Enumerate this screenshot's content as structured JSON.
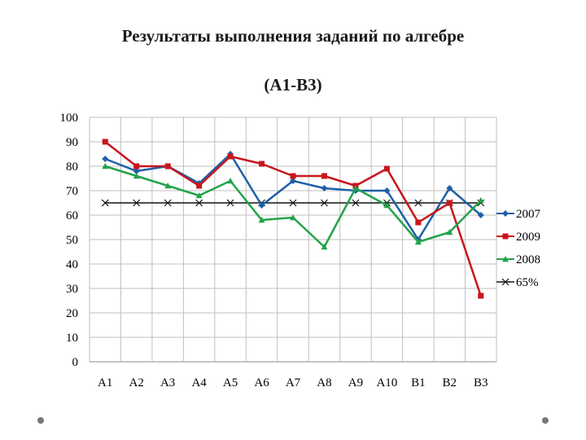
{
  "title_line1": "Результаты выполнения заданий по алгебре",
  "title_line2": "(А1-В3)",
  "chart_data": {
    "type": "line",
    "categories": [
      "А1",
      "А2",
      "А3",
      "А4",
      "А5",
      "А6",
      "А7",
      "А8",
      "А9",
      "А10",
      "В1",
      "В2",
      "В3"
    ],
    "ylim": [
      0,
      100
    ],
    "yticks": [
      0,
      10,
      20,
      30,
      40,
      50,
      60,
      70,
      80,
      90,
      100
    ],
    "grid": true,
    "legend": "right",
    "series": [
      {
        "name": "2007",
        "color": "#1f5fa8",
        "marker": "diamond",
        "values": [
          83,
          78,
          80,
          73,
          85,
          64,
          74,
          71,
          70,
          70,
          50,
          71,
          60
        ]
      },
      {
        "name": "2009",
        "color": "#c8151b",
        "marker": "square",
        "values": [
          90,
          80,
          80,
          72,
          84,
          81,
          76,
          76,
          72,
          79,
          57,
          65,
          27
        ]
      },
      {
        "name": "2008",
        "color": "#23a34a",
        "marker": "triangle",
        "values": [
          80,
          76,
          72,
          68,
          74,
          58,
          59,
          47,
          71,
          64,
          49,
          53,
          66
        ]
      },
      {
        "name": "65%",
        "color": "#111111",
        "marker": "x",
        "values": [
          65,
          65,
          65,
          65,
          65,
          65,
          65,
          65,
          65,
          65,
          65,
          65,
          65
        ]
      }
    ]
  }
}
